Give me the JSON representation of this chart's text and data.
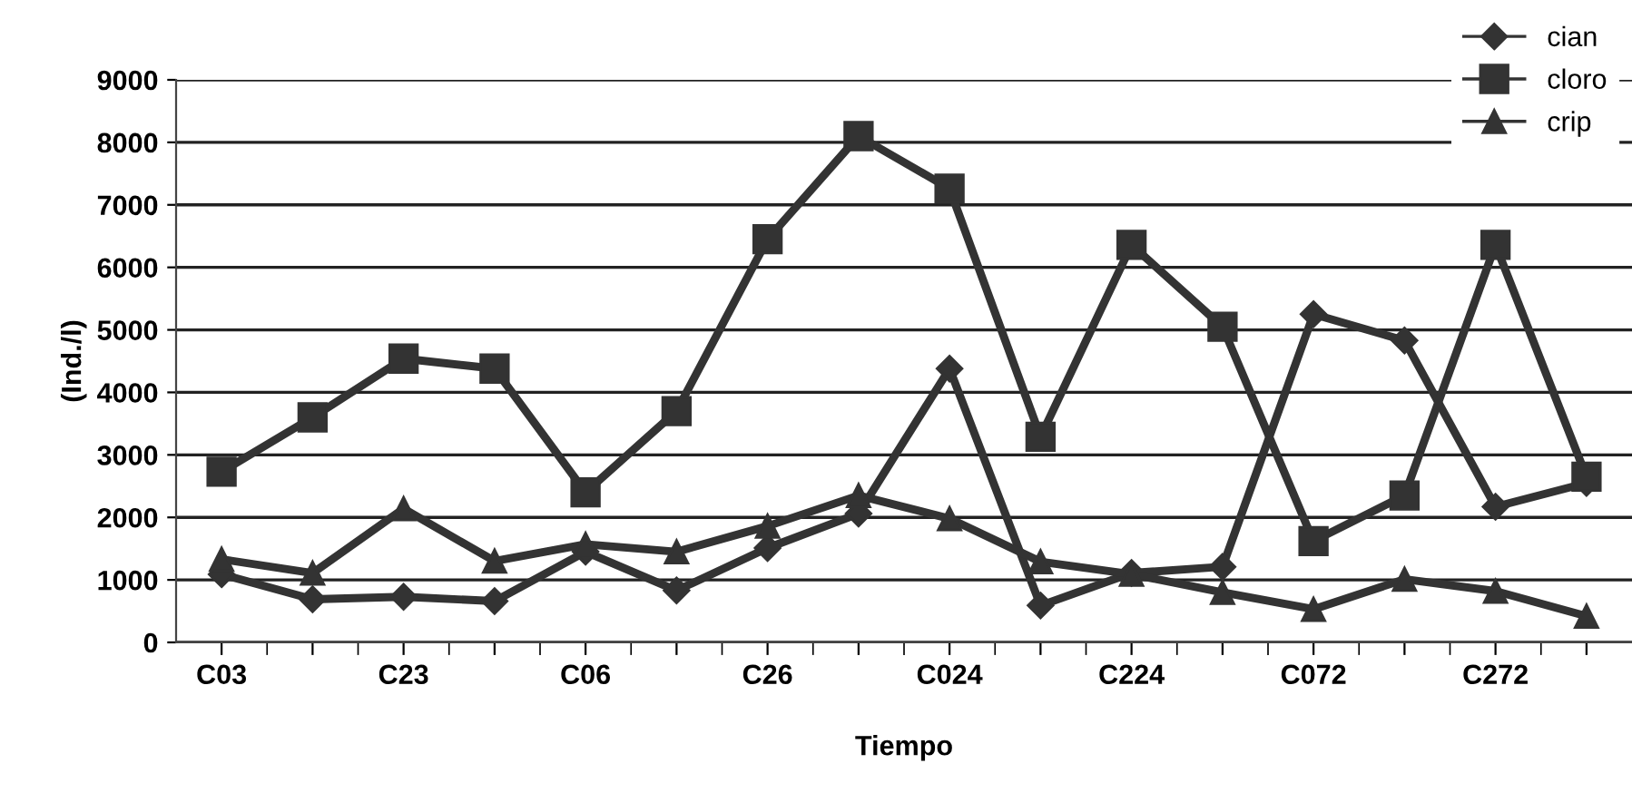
{
  "chart_data": {
    "type": "line",
    "xlabel": "Tiempo",
    "ylabel": "(Ind./l)",
    "categories": [
      "C03",
      null,
      "C23",
      null,
      "C06",
      null,
      "C26",
      null,
      "C024",
      null,
      "C224",
      null,
      "C072",
      null,
      "C272",
      null
    ],
    "series": [
      {
        "name": "cian",
        "color": "#333333",
        "marker": "diamond",
        "values": [
          1090,
          690,
          730,
          660,
          1450,
          830,
          1510,
          2060,
          4380,
          590,
          1110,
          1210,
          5250,
          4830,
          2170,
          2550
        ]
      },
      {
        "name": "cloro",
        "color": "#333333",
        "marker": "square",
        "values": [
          2730,
          3600,
          4540,
          4380,
          2400,
          3700,
          6450,
          8100,
          7260,
          3290,
          6360,
          5050,
          1620,
          2350,
          6360,
          2650
        ]
      },
      {
        "name": "crip",
        "color": "#333333",
        "marker": "triangle",
        "values": [
          1330,
          1110,
          2140,
          1300,
          1570,
          1450,
          1860,
          2350,
          1980,
          1290,
          1090,
          800,
          530,
          1010,
          820,
          420
        ]
      }
    ],
    "ylim": [
      0,
      9000
    ],
    "yticks": [
      0,
      1000,
      2000,
      3000,
      4000,
      5000,
      6000,
      7000,
      8000,
      9000
    ],
    "grid": "y",
    "legend": "top right",
    "line_style": "solid"
  }
}
